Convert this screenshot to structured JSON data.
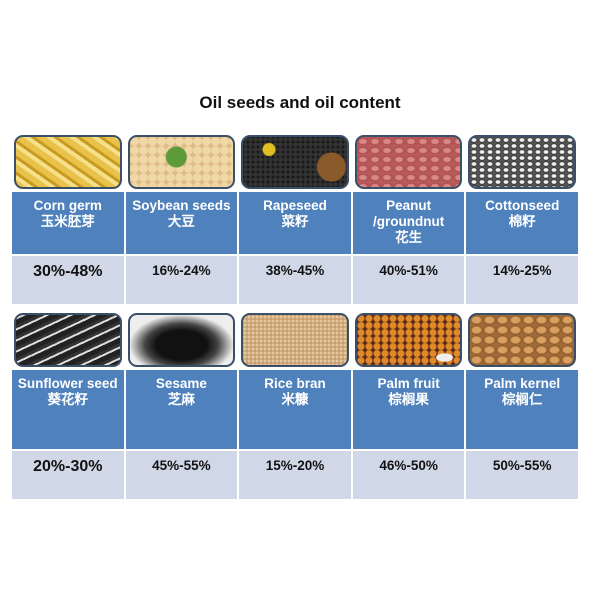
{
  "title": "Oil seeds and oil content",
  "colors": {
    "header": "#4f81bd",
    "value_cell": "#d0d8e8"
  },
  "rows": [
    [
      {
        "name_en": "Corn germ",
        "name_zh": "玉米胚芽",
        "content": "30%-48%",
        "photo": "corn-germ"
      },
      {
        "name_en": "Soybean seeds",
        "name_zh": "大豆",
        "content": "16%-24%",
        "photo": "soybean"
      },
      {
        "name_en": "Rapeseed",
        "name_zh": "菜籽",
        "content": "38%-45%",
        "photo": "rapeseed"
      },
      {
        "name_en": "Peanut /groundnut",
        "name_zh": "花生",
        "content": "40%-51%",
        "photo": "peanut"
      },
      {
        "name_en": "Cottonseed",
        "name_zh": "棉籽",
        "content": "14%-25%",
        "photo": "cottonseed"
      }
    ],
    [
      {
        "name_en": "Sunflower seed",
        "name_zh": "葵花籽",
        "content": "20%-30%",
        "photo": "sunflower-seed"
      },
      {
        "name_en": "Sesame",
        "name_zh": "芝麻",
        "content": "45%-55%",
        "photo": "sesame"
      },
      {
        "name_en": "Rice bran",
        "name_zh": "米糠",
        "content": "15%-20%",
        "photo": "rice-bran"
      },
      {
        "name_en": "Palm fruit",
        "name_zh": "棕榈果",
        "content": "46%-50%",
        "photo": "palm-fruit"
      },
      {
        "name_en": "Palm kernel",
        "name_zh": "棕榈仁",
        "content": "50%-55%",
        "photo": "palm-kernel"
      }
    ]
  ]
}
